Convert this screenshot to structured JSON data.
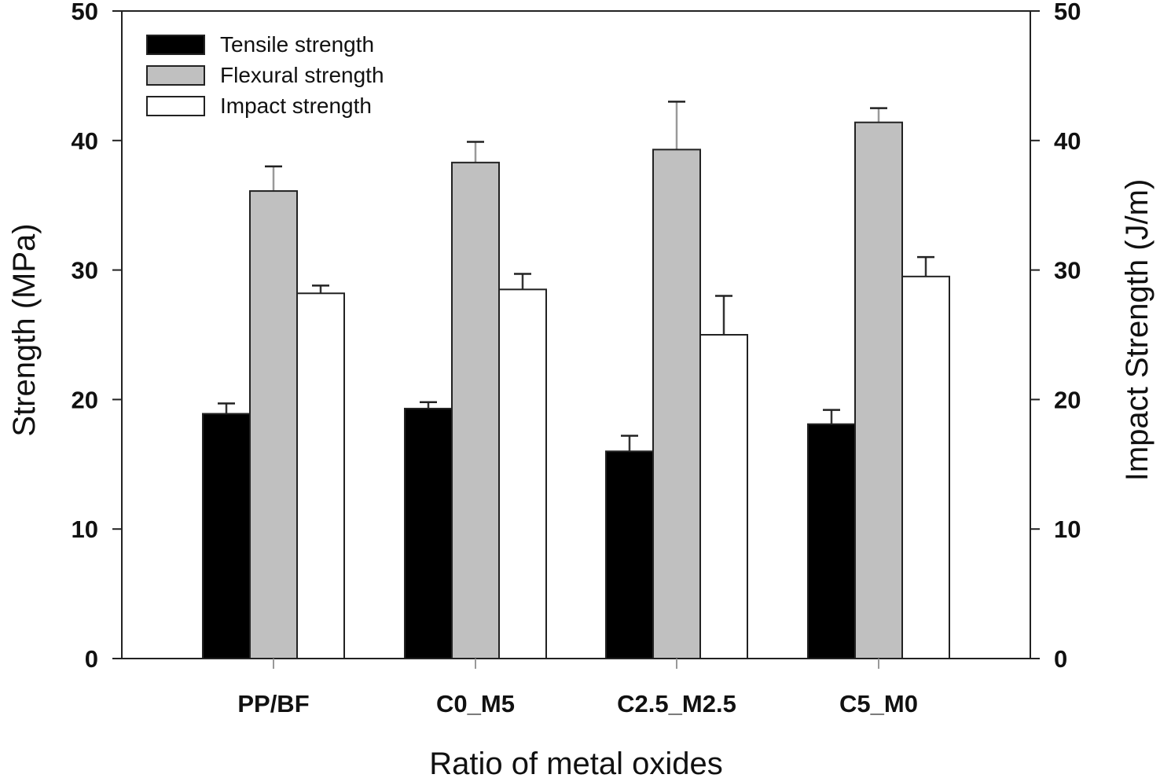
{
  "chart_data": {
    "type": "bar",
    "title": "",
    "xlabel": "Ratio of metal oxides",
    "ylabel": "Strength (MPa)",
    "y2label": "Impact Strength (J/m)",
    "ylim": [
      0,
      50
    ],
    "y2lim": [
      0,
      50
    ],
    "yticks": [
      0,
      10,
      20,
      30,
      40,
      50
    ],
    "y2ticks": [
      0,
      10,
      20,
      30,
      40,
      50
    ],
    "grid": false,
    "legend_position": "top-left",
    "categories": [
      "PP/BF",
      "C0_M5",
      "C2.5_M2.5",
      "C5_M0"
    ],
    "series": [
      {
        "name": "Tensile strength",
        "axis": "left",
        "color": "#000000",
        "values": [
          18.9,
          19.3,
          16.0,
          18.1
        ],
        "error": [
          0.8,
          0.5,
          1.2,
          1.1
        ]
      },
      {
        "name": "Flexural strength",
        "axis": "left",
        "color": "#c0c0c0",
        "values": [
          36.1,
          38.3,
          39.3,
          41.4
        ],
        "error": [
          1.9,
          1.6,
          3.7,
          1.1
        ]
      },
      {
        "name": "Impact strength",
        "axis": "right",
        "color": "#ffffff",
        "values": [
          28.2,
          28.5,
          25.0,
          29.5
        ],
        "error": [
          0.6,
          1.2,
          3.0,
          1.5
        ]
      }
    ]
  }
}
